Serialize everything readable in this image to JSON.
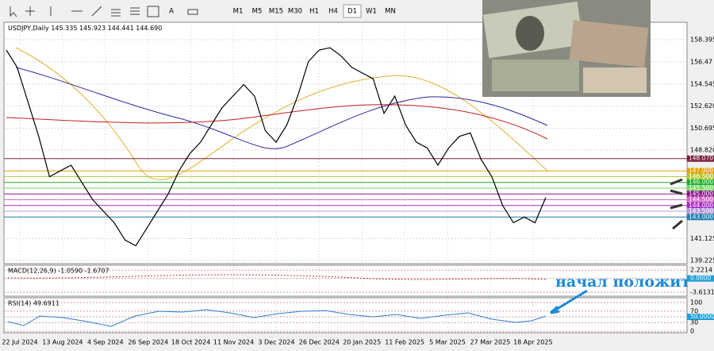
{
  "toolbar": {
    "text_tool": "A",
    "timeframes": [
      "M1",
      "M5",
      "M15",
      "M30",
      "H1",
      "H4",
      "D1",
      "W1",
      "MN"
    ],
    "active": "D1"
  },
  "header": {
    "symbol": "USDJPY,Daily",
    "open": "145.335",
    "high": "145.923",
    "low": "144.441",
    "close": "144.690"
  },
  "price_axis": {
    "ylim": [
      138.95,
      159.91
    ],
    "yticks": [
      158.395,
      156.47,
      154.545,
      {
        "value": 152.62,
        "label": "152.620"
      },
      150.695,
      {
        "value": 148.82,
        "label": "148.820"
      },
      141.125,
      139.225
    ]
  },
  "levels": [
    {
      "value": 148.07,
      "label": "148.070",
      "color": "#7a1f3d"
    },
    {
      "value": 147,
      "label": "147.000",
      "color": "#e6a100"
    },
    {
      "value": 146.5,
      "label": "146.500",
      "color": "#b8c93a"
    },
    {
      "value": 146,
      "label": "146.000",
      "color": "#1fae2e"
    },
    {
      "value": 145.5,
      "label": "145.500",
      "color": "#7bd66a"
    },
    {
      "value": 145,
      "label": "145.000",
      "color": "#8a1a8a"
    },
    {
      "value": 144.5,
      "label": "144.500",
      "color": "#d46cc4"
    },
    {
      "value": 144,
      "label": "144.000",
      "color": "#a12fc0"
    },
    {
      "value": 143.5,
      "label": "143.500",
      "color": "#b99ad8"
    },
    {
      "value": 143,
      "label": "143.000",
      "color": "#1f7fae"
    }
  ],
  "price_series": {
    "color": "#000000",
    "values": [
      157.5,
      156,
      153,
      150,
      146.5,
      147,
      147.5,
      146,
      144.5,
      143.5,
      142.5,
      141,
      140.5,
      142,
      143.5,
      145,
      147,
      148.5,
      149.5,
      151,
      152.5,
      153.5,
      154.5,
      153.5,
      150.5,
      149.5,
      151,
      153.5,
      156.5,
      157.5,
      157.7,
      157,
      156,
      155.5,
      155,
      152,
      153.5,
      151,
      149.5,
      149,
      147.5,
      149,
      150,
      150.3,
      148,
      146.5,
      144,
      142.5,
      143,
      142.5,
      144.7
    ]
  },
  "dates": [
    "22 Jul 2024",
    "13 Aug 2024",
    "4 Sep 2024",
    "26 Sep 2024",
    "18 Oct 2024",
    "11 Nov 2024",
    "3 Dec 2024",
    "26 Dec 2024",
    "20 Jan 2025",
    "11 Feb 2025",
    "5 Mar 2025",
    "27 Mar 2025",
    "18 Apr 2025"
  ],
  "macd": {
    "label": "MACD(12,26,9) -1.0590 -1.6707",
    "ylim": [
      -4.65,
      3.05
    ],
    "yticks": [
      2.2214,
      {
        "value": 0,
        "label": "0.0000"
      },
      -3.6131
    ]
  },
  "rsi": {
    "label": "RSI(14) 49.6911",
    "ylim": [
      0,
      100
    ],
    "yticks": [
      100,
      70,
      {
        "value": 50,
        "label": "50.0000"
      },
      30,
      0
    ]
  },
  "annotation": "начал положит"
}
